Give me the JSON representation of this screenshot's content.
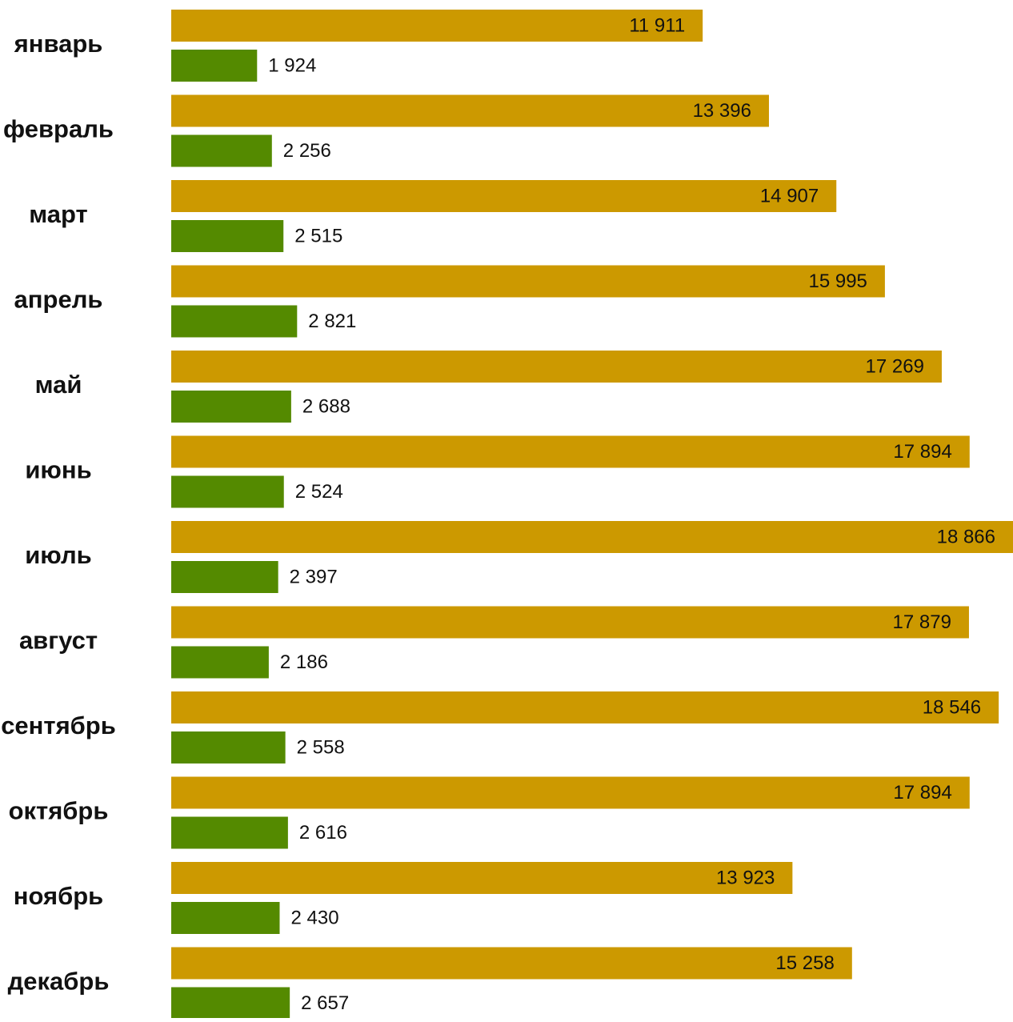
{
  "chart_data": {
    "type": "bar",
    "orientation": "horizontal",
    "categories": [
      "январь",
      "февраль",
      "март",
      "апрель",
      "май",
      "июнь",
      "июль",
      "август",
      "сентябрь",
      "октябрь",
      "ноябрь",
      "декабрь"
    ],
    "series": [
      {
        "color": "#CC9900",
        "values": [
          11911,
          13396,
          14907,
          15995,
          17269,
          17894,
          18866,
          17879,
          18546,
          17894,
          13923,
          15258
        ],
        "labels": [
          "11 911",
          "13 396",
          "14 907",
          "15 995",
          "17 269",
          "17 894",
          "18 866",
          "17 879",
          "18 546",
          "17 894",
          "13 923",
          "15 258"
        ],
        "label_position": "inside-end"
      },
      {
        "color": "#548A00",
        "values": [
          1924,
          2256,
          2515,
          2821,
          2688,
          2524,
          2397,
          2186,
          2558,
          2616,
          2430,
          2657
        ],
        "labels": [
          "1 924",
          "2 256",
          "2 515",
          "2 821",
          "2 688",
          "2 524",
          "2 397",
          "2 186",
          "2 558",
          "2 616",
          "2 430",
          "2 657"
        ],
        "label_position": "outside-end"
      }
    ],
    "xlim": [
      0,
      18866
    ],
    "grid": false,
    "legend": "none",
    "axis_visible": false
  }
}
